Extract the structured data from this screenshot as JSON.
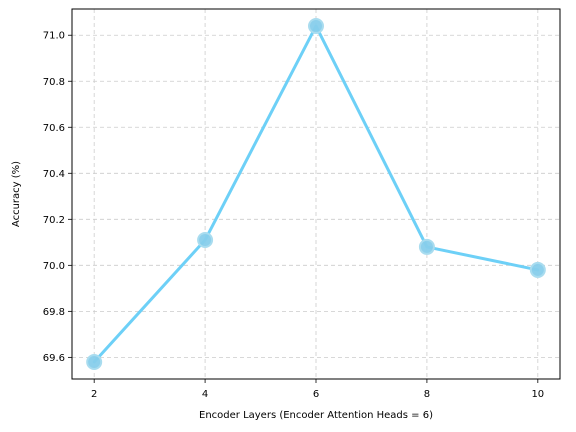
{
  "chart_data": {
    "type": "line",
    "title": "",
    "xlabel": "Encoder Layers (Encoder Attention Heads = 6)",
    "ylabel": "Accuracy (%)",
    "x": [
      2,
      4,
      6,
      8,
      10
    ],
    "series": [
      {
        "values": [
          69.58,
          70.11,
          71.04,
          70.08,
          69.98
        ]
      }
    ],
    "xticks": [
      2,
      4,
      6,
      8,
      10
    ],
    "yticks": [
      69.6,
      69.8,
      70.0,
      70.2,
      70.4,
      70.6,
      70.8,
      71.0
    ],
    "ytick_labels": [
      "69.6",
      "69.8",
      "70.0",
      "70.2",
      "70.4",
      "70.6",
      "70.8",
      "71.0"
    ],
    "xlim": [
      1.6,
      10.4
    ],
    "ylim": [
      69.506,
      71.114
    ],
    "grid": true,
    "legend": "none",
    "colors": {
      "line": "#6dd0f7",
      "marker": "#87ceeb",
      "grid": "#cccccc"
    }
  }
}
